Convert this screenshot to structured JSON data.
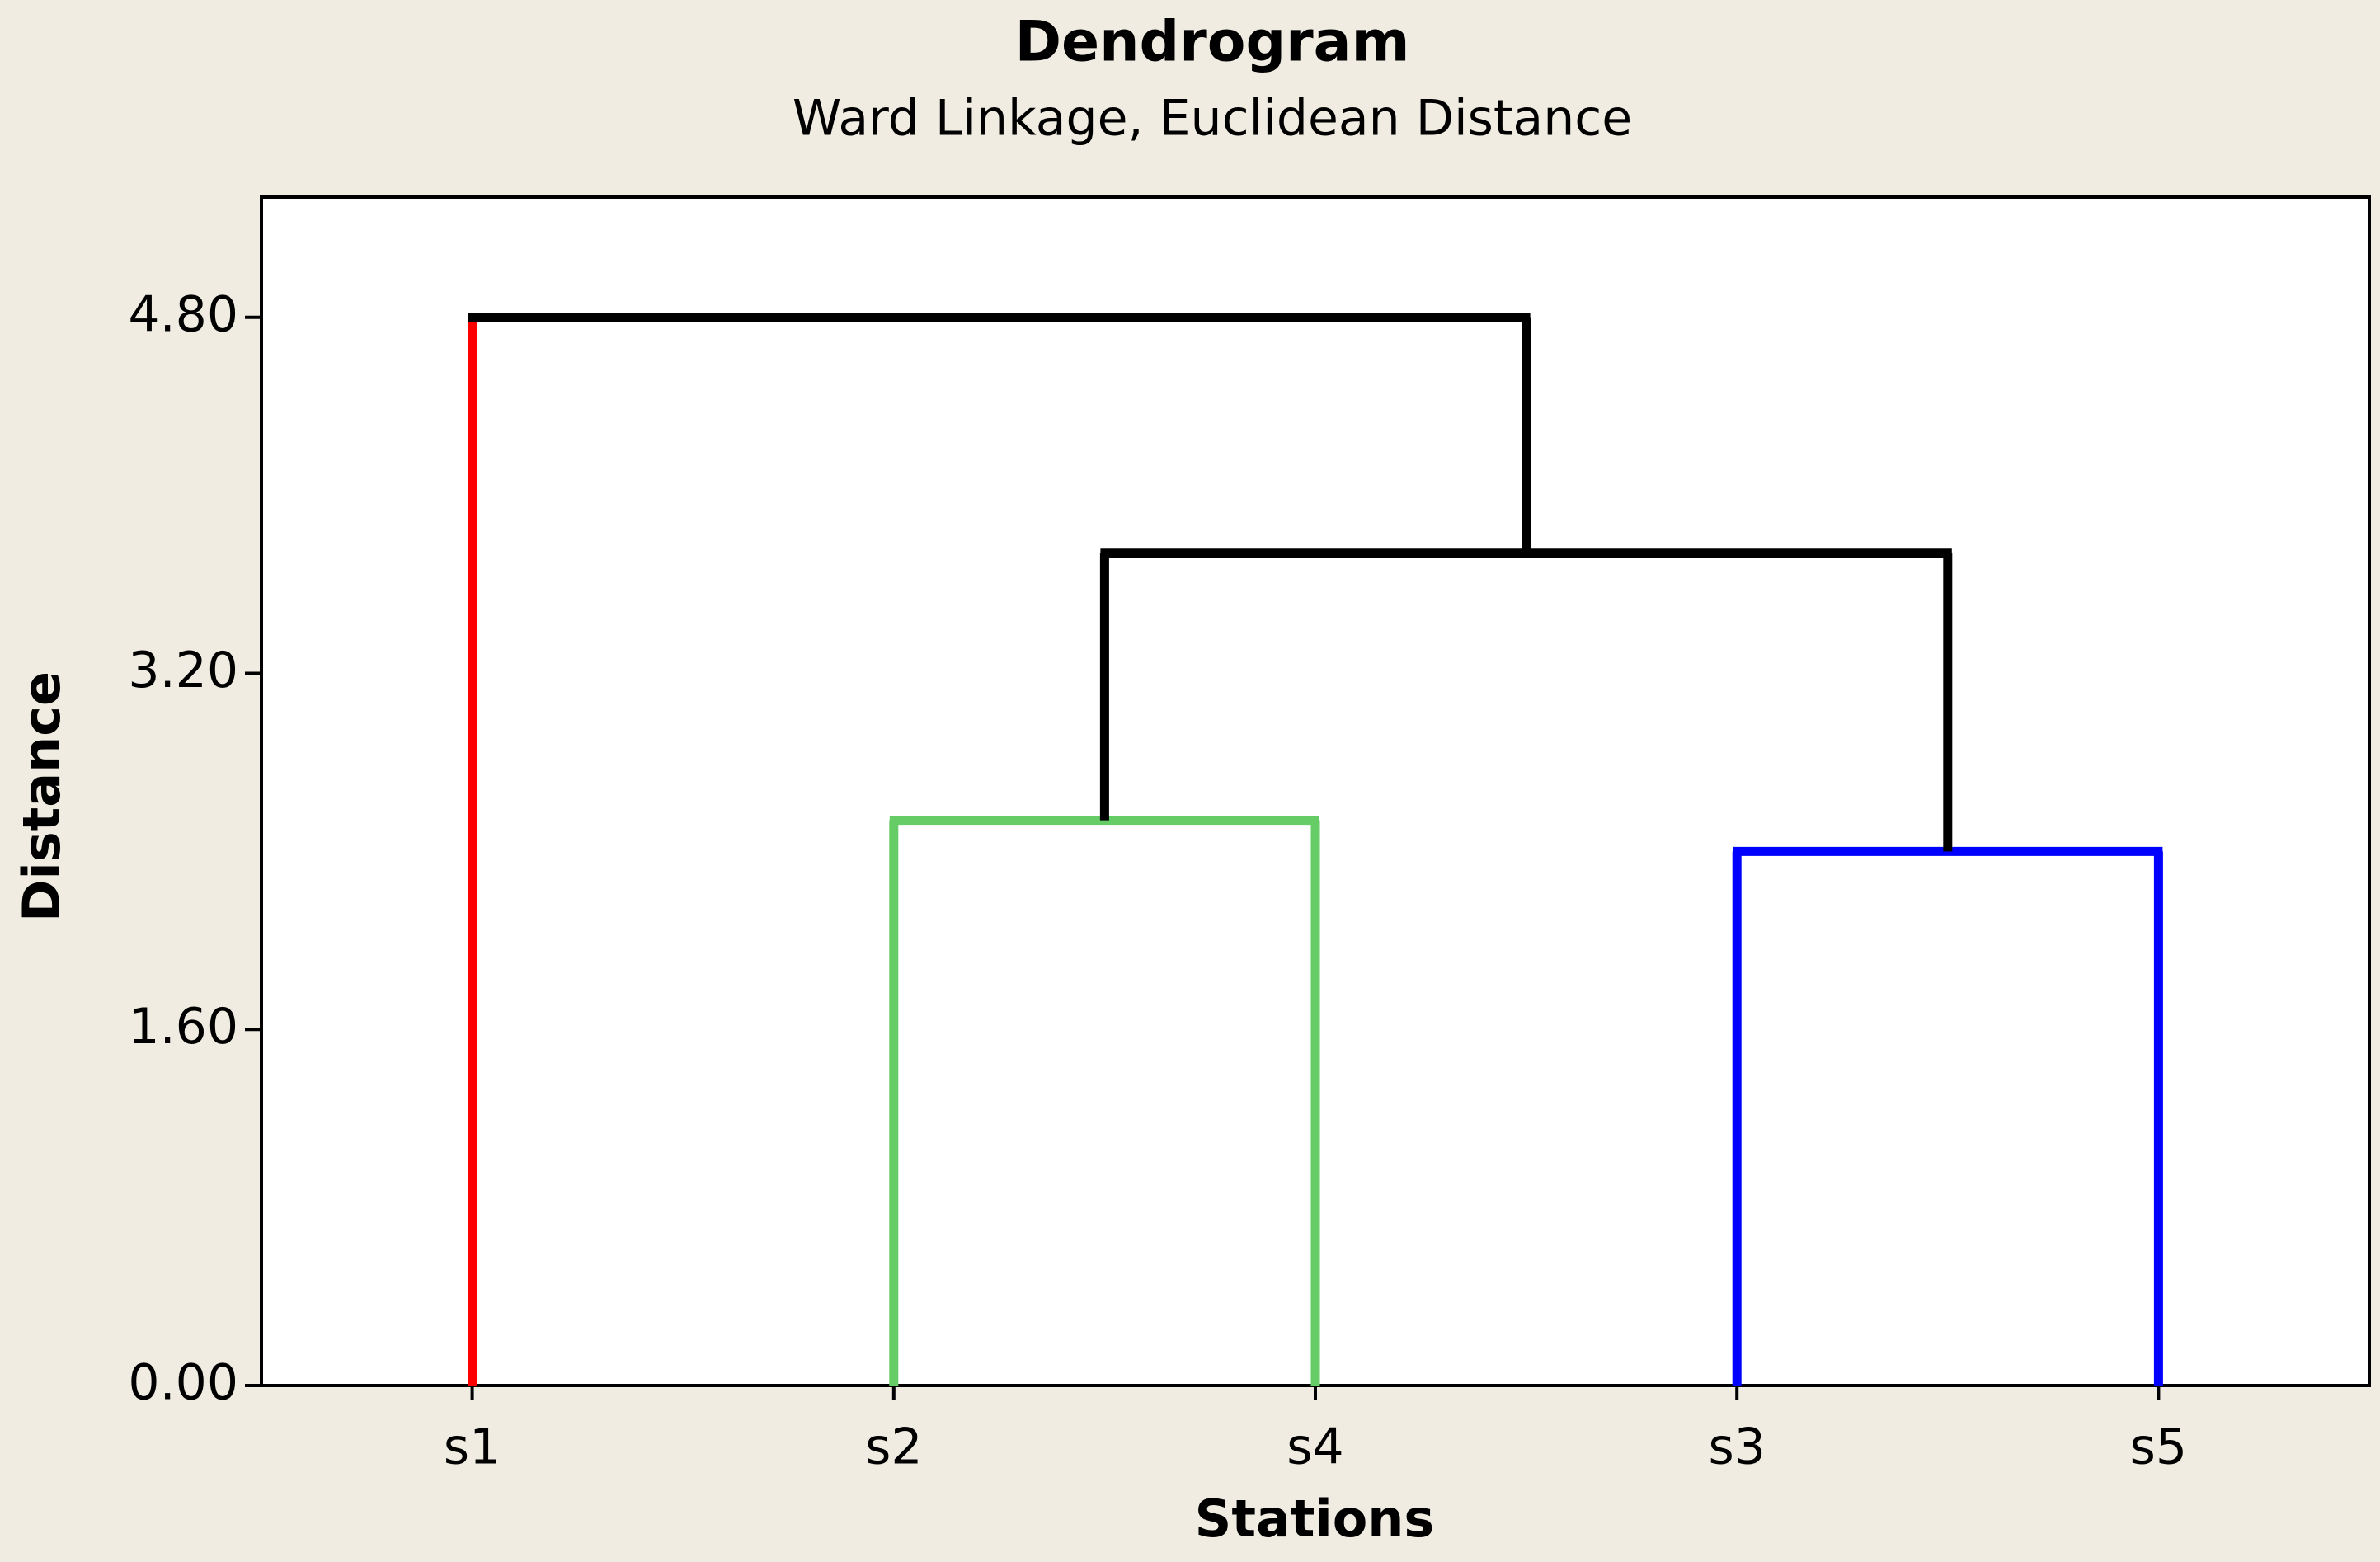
{
  "chart_data": {
    "type": "dendrogram",
    "title": "Dendrogram",
    "subtitle": "Ward Linkage, Euclidean Distance",
    "x_label": "Stations",
    "y_label": "Distance",
    "categories": [
      "s1",
      "s2",
      "s4",
      "s3",
      "s5"
    ],
    "leaf_colors": [
      "#ff0000",
      "#66cc66",
      "#66cc66",
      "#0000ff",
      "#0000ff"
    ],
    "merges": [
      {
        "children": [
          1,
          2
        ],
        "height": 2.54,
        "color": "#66cc66"
      },
      {
        "children": [
          3,
          4
        ],
        "height": 2.4,
        "color": "#0000ff"
      },
      {
        "children": [
          5,
          6
        ],
        "height": 3.74,
        "color": "#000000"
      },
      {
        "children": [
          0,
          7
        ],
        "height": 4.8,
        "color": "#000000"
      }
    ],
    "ylim": [
      0,
      5.34
    ],
    "yticks": [
      {
        "value": 0,
        "label": "0.00"
      },
      {
        "value": 1.6,
        "label": "1.60"
      },
      {
        "value": 3.2,
        "label": "3.20"
      },
      {
        "value": 4.8,
        "label": "4.80"
      }
    ]
  }
}
